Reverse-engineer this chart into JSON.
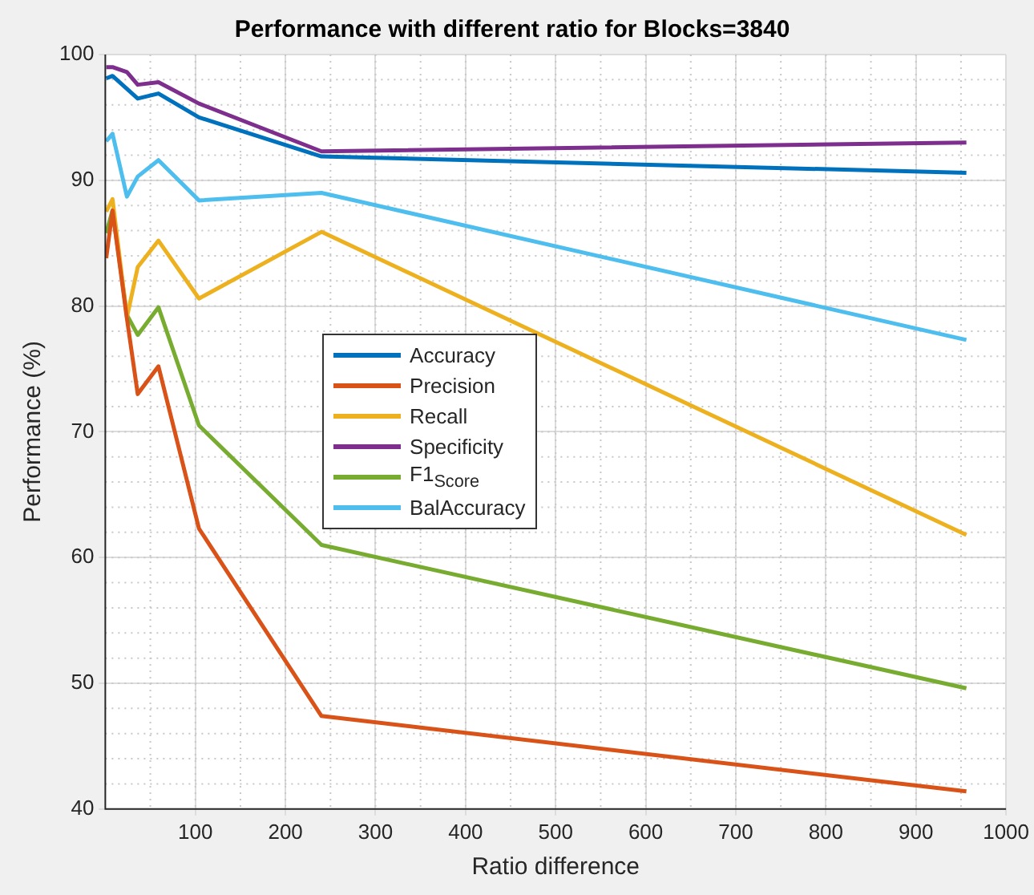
{
  "chart_data": {
    "type": "line",
    "title": "Performance with different ratio for Blocks=3840",
    "xlabel": "Ratio difference",
    "ylabel": "Performance (%)",
    "x": [
      1,
      8,
      24,
      36,
      59,
      104,
      240,
      956
    ],
    "series": [
      {
        "name": "Accuracy",
        "color": "#0072bd",
        "values": [
          98.1,
          98.3,
          null,
          96.5,
          96.9,
          95.0,
          91.9,
          90.6
        ]
      },
      {
        "name": "Precision",
        "color": "#d95319",
        "values": [
          83.8,
          87.6,
          79.0,
          73.0,
          75.2,
          62.3,
          47.4,
          41.4
        ]
      },
      {
        "name": "Recall",
        "color": "#edb120",
        "values": [
          87.5,
          88.5,
          79.1,
          83.1,
          85.2,
          80.6,
          85.9,
          61.8
        ]
      },
      {
        "name": "Specificity",
        "color": "#7e2f8e",
        "values": [
          99.0,
          99.0,
          98.6,
          97.6,
          97.8,
          96.1,
          92.3,
          93.0
        ]
      },
      {
        "name": "F1$_{Score}$",
        "color": "#77ac30",
        "values": [
          85.8,
          87.6,
          79.3,
          77.7,
          79.9,
          70.5,
          61.0,
          49.6
        ]
      },
      {
        "name": "BalAccuracy",
        "color": "#4dbeee",
        "values": [
          93.1,
          93.7,
          88.7,
          90.3,
          91.6,
          88.4,
          89.0,
          77.3
        ]
      }
    ],
    "xlim": [
      0,
      1000
    ],
    "xticks": [
      100,
      200,
      300,
      400,
      500,
      600,
      700,
      800,
      900,
      1000
    ],
    "ylim": [
      40,
      100
    ],
    "yticks": [
      40,
      50,
      60,
      70,
      80,
      90,
      100
    ],
    "grid": true,
    "legend": "center left",
    "marker": "none",
    "line_style": "solid"
  }
}
